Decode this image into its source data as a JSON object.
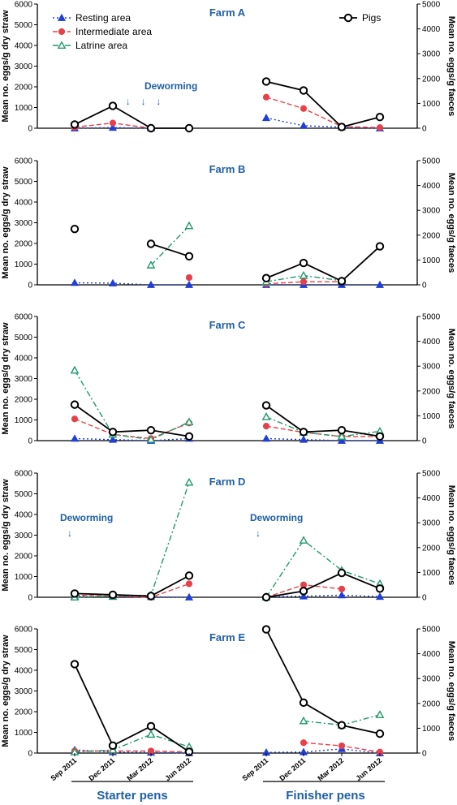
{
  "chart_data": {
    "type": "line",
    "y_left_label": "Mean no. eggs/g dry straw",
    "y_right_label": "Mean no. eggs/g faeces",
    "y_left_ticks": [
      0,
      1000,
      2000,
      3000,
      4000,
      5000,
      6000
    ],
    "y_right_ticks": [
      0,
      1000,
      2000,
      3000,
      4000,
      5000
    ],
    "ylim_left": [
      0,
      6000
    ],
    "ylim_right": [
      0,
      5000
    ],
    "x_tick_labels": [
      "Sep 2011",
      "Dec 2011",
      "Mar 2012",
      "Jun 2012"
    ],
    "groups": [
      "Starter pens",
      "Finisher pens"
    ],
    "legend": {
      "entries": [
        {
          "key": "resting",
          "label": "Resting area"
        },
        {
          "key": "intermediate",
          "label": "Intermediate area"
        },
        {
          "key": "latrine",
          "label": "Latrine area"
        },
        {
          "key": "pigs",
          "label": "Pigs"
        }
      ]
    },
    "series_styles": {
      "resting": {
        "color": "#1f3fd6",
        "marker": "triangle-filled",
        "dash": "2,3",
        "axis": "left"
      },
      "intermediate": {
        "color": "#e8404a",
        "marker": "circle-filled",
        "dash": "6,3",
        "axis": "left"
      },
      "latrine": {
        "color": "#1f9a6a",
        "marker": "triangle-open",
        "dash": "7,3,2,3",
        "axis": "left"
      },
      "pigs": {
        "color": "#000000",
        "marker": "circle-open",
        "dash": "",
        "axis": "right"
      }
    },
    "panels": [
      {
        "title": "Farm A",
        "annotations": [
          {
            "text": "Deworming",
            "group": 0,
            "arrows_at": [
              1.4,
              1.8,
              2.2
            ]
          }
        ],
        "starter": {
          "resting": [
            0,
            30,
            0,
            null
          ],
          "intermediate": [
            50,
            250,
            0,
            null
          ],
          "latrine": [
            null,
            null,
            null,
            null
          ],
          "pigs": [
            150,
            900,
            0,
            0
          ]
        },
        "finisher": {
          "resting": [
            500,
            120,
            50,
            0
          ],
          "intermediate": [
            1500,
            950,
            80,
            30
          ],
          "latrine": [
            null,
            null,
            null,
            null
          ],
          "pigs": [
            1880,
            1520,
            50,
            450
          ]
        }
      },
      {
        "title": "Farm B",
        "annotations": [],
        "starter": {
          "resting": [
            100,
            80,
            0,
            0
          ],
          "intermediate": [
            null,
            null,
            null,
            350
          ],
          "latrine": [
            null,
            null,
            950,
            2850
          ],
          "pigs": [
            2250,
            null,
            1650,
            1150
          ]
        },
        "finisher": {
          "resting": [
            0,
            0,
            0,
            0
          ],
          "intermediate": [
            50,
            150,
            150,
            null
          ],
          "latrine": [
            150,
            450,
            200,
            null
          ],
          "pigs": [
            270,
            880,
            150,
            1550
          ]
        }
      },
      {
        "title": "Farm C",
        "annotations": [],
        "starter": {
          "resting": [
            100,
            50,
            0,
            100
          ],
          "intermediate": [
            1050,
            300,
            100,
            850
          ],
          "latrine": [
            3400,
            300,
            50,
            900
          ],
          "pigs": [
            1450,
            350,
            420,
            170
          ]
        },
        "finisher": {
          "resting": [
            100,
            50,
            0,
            0
          ],
          "intermediate": [
            700,
            400,
            200,
            200
          ],
          "latrine": [
            1150,
            400,
            200,
            450
          ],
          "pigs": [
            1420,
            350,
            420,
            170
          ]
        }
      },
      {
        "title": "Farm D",
        "annotations": [
          {
            "text": "Deworming",
            "group": 0,
            "arrows_at": [
              0
            ]
          },
          {
            "text": "Deworming",
            "group": 1,
            "arrows_at": [
              0
            ]
          }
        ],
        "starter": {
          "resting": [
            50,
            30,
            20,
            0
          ],
          "intermediate": [
            100,
            50,
            0,
            650
          ],
          "latrine": [
            0,
            50,
            100,
            5550
          ],
          "pigs": [
            150,
            100,
            50,
            870
          ]
        },
        "finisher": {
          "resting": [
            30,
            50,
            100,
            30
          ],
          "intermediate": [
            0,
            600,
            400,
            null
          ],
          "latrine": [
            0,
            2750,
            1300,
            650
          ],
          "pigs": [
            0,
            250,
            980,
            350
          ]
        }
      },
      {
        "title": "Farm E",
        "annotations": [],
        "starter": {
          "resting": [
            150,
            50,
            30,
            0
          ],
          "intermediate": [
            100,
            100,
            100,
            50
          ],
          "latrine": [
            50,
            150,
            900,
            300
          ],
          "pigs": [
            3580,
            300,
            1080,
            50
          ]
        },
        "finisher": {
          "resting": [
            30,
            50,
            200,
            0
          ],
          "intermediate": [
            null,
            500,
            350,
            50
          ],
          "latrine": [
            null,
            1550,
            1350,
            1850
          ],
          "pigs": [
            4980,
            2030,
            1120,
            780
          ]
        }
      }
    ]
  }
}
